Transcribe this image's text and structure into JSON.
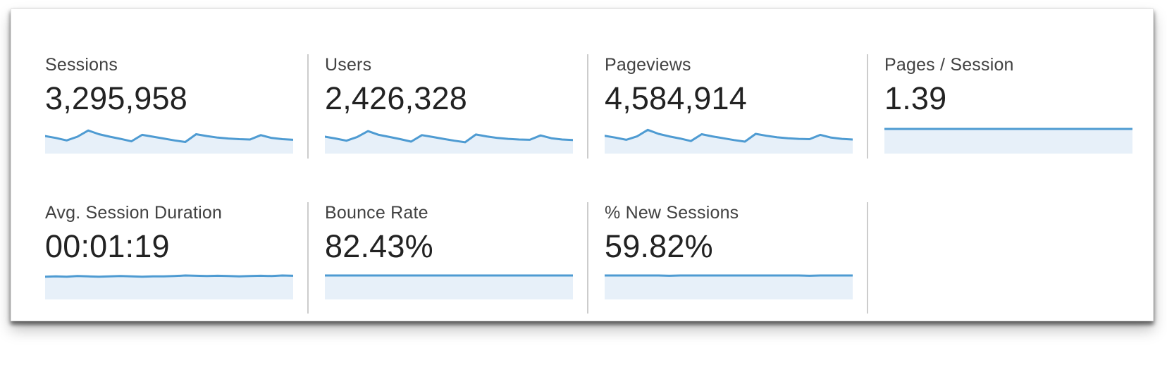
{
  "colors": {
    "spark_line": "#4e9bd2",
    "spark_fill": "#e7f0f9",
    "divider": "#cccccc",
    "label_text": "#414141",
    "value_text": "#222222",
    "card_background": "#ffffff"
  },
  "metrics": [
    {
      "id": "sessions",
      "label": "Sessions",
      "value": "3,295,958",
      "sparkline": {
        "type": "area",
        "values": [
          0.52,
          0.46,
          0.38,
          0.5,
          0.7,
          0.58,
          0.5,
          0.43,
          0.35,
          0.56,
          0.5,
          0.44,
          0.38,
          0.33,
          0.58,
          0.52,
          0.47,
          0.44,
          0.42,
          0.41,
          0.55,
          0.46,
          0.42,
          0.4
        ]
      }
    },
    {
      "id": "users",
      "label": "Users",
      "value": "2,426,328",
      "sparkline": {
        "type": "area",
        "values": [
          0.5,
          0.44,
          0.37,
          0.49,
          0.68,
          0.56,
          0.49,
          0.42,
          0.34,
          0.55,
          0.49,
          0.43,
          0.37,
          0.32,
          0.57,
          0.51,
          0.46,
          0.43,
          0.41,
          0.4,
          0.54,
          0.45,
          0.41,
          0.39
        ]
      }
    },
    {
      "id": "pageviews",
      "label": "Pageviews",
      "value": "4,584,914",
      "sparkline": {
        "type": "area",
        "values": [
          0.53,
          0.47,
          0.4,
          0.51,
          0.72,
          0.59,
          0.51,
          0.44,
          0.36,
          0.58,
          0.51,
          0.45,
          0.39,
          0.34,
          0.59,
          0.53,
          0.48,
          0.45,
          0.43,
          0.42,
          0.56,
          0.47,
          0.43,
          0.41
        ]
      }
    },
    {
      "id": "pages-per-session",
      "label": "Pages / Session",
      "value": "1.39",
      "sparkline": {
        "type": "area",
        "values": [
          0.75,
          0.75,
          0.75,
          0.75,
          0.75,
          0.75,
          0.75,
          0.75,
          0.75,
          0.75,
          0.75,
          0.75,
          0.75,
          0.75,
          0.75,
          0.75,
          0.75,
          0.75,
          0.75,
          0.75,
          0.75,
          0.75,
          0.75,
          0.75
        ]
      }
    },
    {
      "id": "avg-session-duration",
      "label": "Avg. Session Duration",
      "value": "00:01:19",
      "sparkline": {
        "type": "area",
        "values": [
          0.74,
          0.75,
          0.74,
          0.76,
          0.75,
          0.74,
          0.75,
          0.76,
          0.75,
          0.74,
          0.75,
          0.75,
          0.76,
          0.78,
          0.77,
          0.76,
          0.77,
          0.76,
          0.75,
          0.76,
          0.77,
          0.76,
          0.78,
          0.77
        ]
      }
    },
    {
      "id": "bounce-rate",
      "label": "Bounce Rate",
      "value": "82.43%",
      "sparkline": {
        "type": "area",
        "values": [
          0.78,
          0.78,
          0.78,
          0.78,
          0.78,
          0.78,
          0.78,
          0.78,
          0.78,
          0.78,
          0.78,
          0.78,
          0.78,
          0.78,
          0.78,
          0.78,
          0.78,
          0.78,
          0.78,
          0.78,
          0.78,
          0.78,
          0.78,
          0.78
        ]
      }
    },
    {
      "id": "new-sessions",
      "label": "% New Sessions",
      "value": "59.82%",
      "sparkline": {
        "type": "area",
        "values": [
          0.78,
          0.78,
          0.78,
          0.78,
          0.78,
          0.78,
          0.77,
          0.78,
          0.78,
          0.78,
          0.78,
          0.78,
          0.78,
          0.78,
          0.78,
          0.78,
          0.78,
          0.78,
          0.78,
          0.77,
          0.78,
          0.78,
          0.78,
          0.78
        ]
      }
    }
  ]
}
